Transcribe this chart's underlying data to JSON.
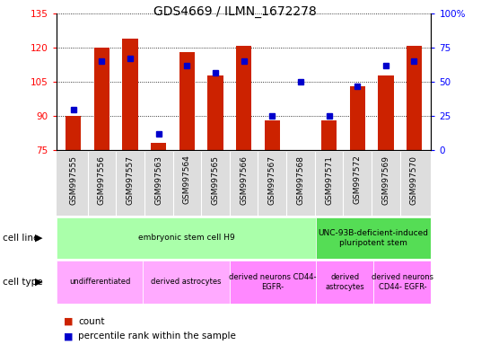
{
  "title": "GDS4669 / ILMN_1672278",
  "samples": [
    "GSM997555",
    "GSM997556",
    "GSM997557",
    "GSM997563",
    "GSM997564",
    "GSM997565",
    "GSM997566",
    "GSM997567",
    "GSM997568",
    "GSM997571",
    "GSM997572",
    "GSM997569",
    "GSM997570"
  ],
  "bar_values": [
    90,
    120,
    124,
    78,
    118,
    108,
    121,
    88,
    75,
    88,
    103,
    108,
    121
  ],
  "blue_values": [
    30,
    65,
    67,
    12,
    62,
    57,
    65,
    25,
    50,
    25,
    47,
    62,
    65
  ],
  "ylim_left": [
    75,
    135
  ],
  "ylim_right": [
    0,
    100
  ],
  "yticks_left": [
    75,
    90,
    105,
    120,
    135
  ],
  "yticks_right": [
    0,
    25,
    50,
    75,
    100
  ],
  "ytick_right_labels": [
    "0",
    "25",
    "50",
    "75",
    "100%"
  ],
  "bar_color": "#cc2200",
  "blue_color": "#0000cc",
  "cell_line_groups": [
    {
      "label": "embryonic stem cell H9",
      "start": 0,
      "end": 8,
      "color": "#aaffaa"
    },
    {
      "label": "UNC-93B-deficient-induced\npluripotent stem",
      "start": 9,
      "end": 12,
      "color": "#55dd55"
    }
  ],
  "cell_type_groups": [
    {
      "label": "undifferentiated",
      "start": 0,
      "end": 2,
      "color": "#ffaaff"
    },
    {
      "label": "derived astrocytes",
      "start": 3,
      "end": 5,
      "color": "#ffaaff"
    },
    {
      "label": "derived neurons CD44-\nEGFR-",
      "start": 6,
      "end": 8,
      "color": "#ff88ff"
    },
    {
      "label": "derived\nastrocytes",
      "start": 9,
      "end": 10,
      "color": "#ff88ff"
    },
    {
      "label": "derived neurons\nCD44- EGFR-",
      "start": 11,
      "end": 12,
      "color": "#ff88ff"
    }
  ]
}
